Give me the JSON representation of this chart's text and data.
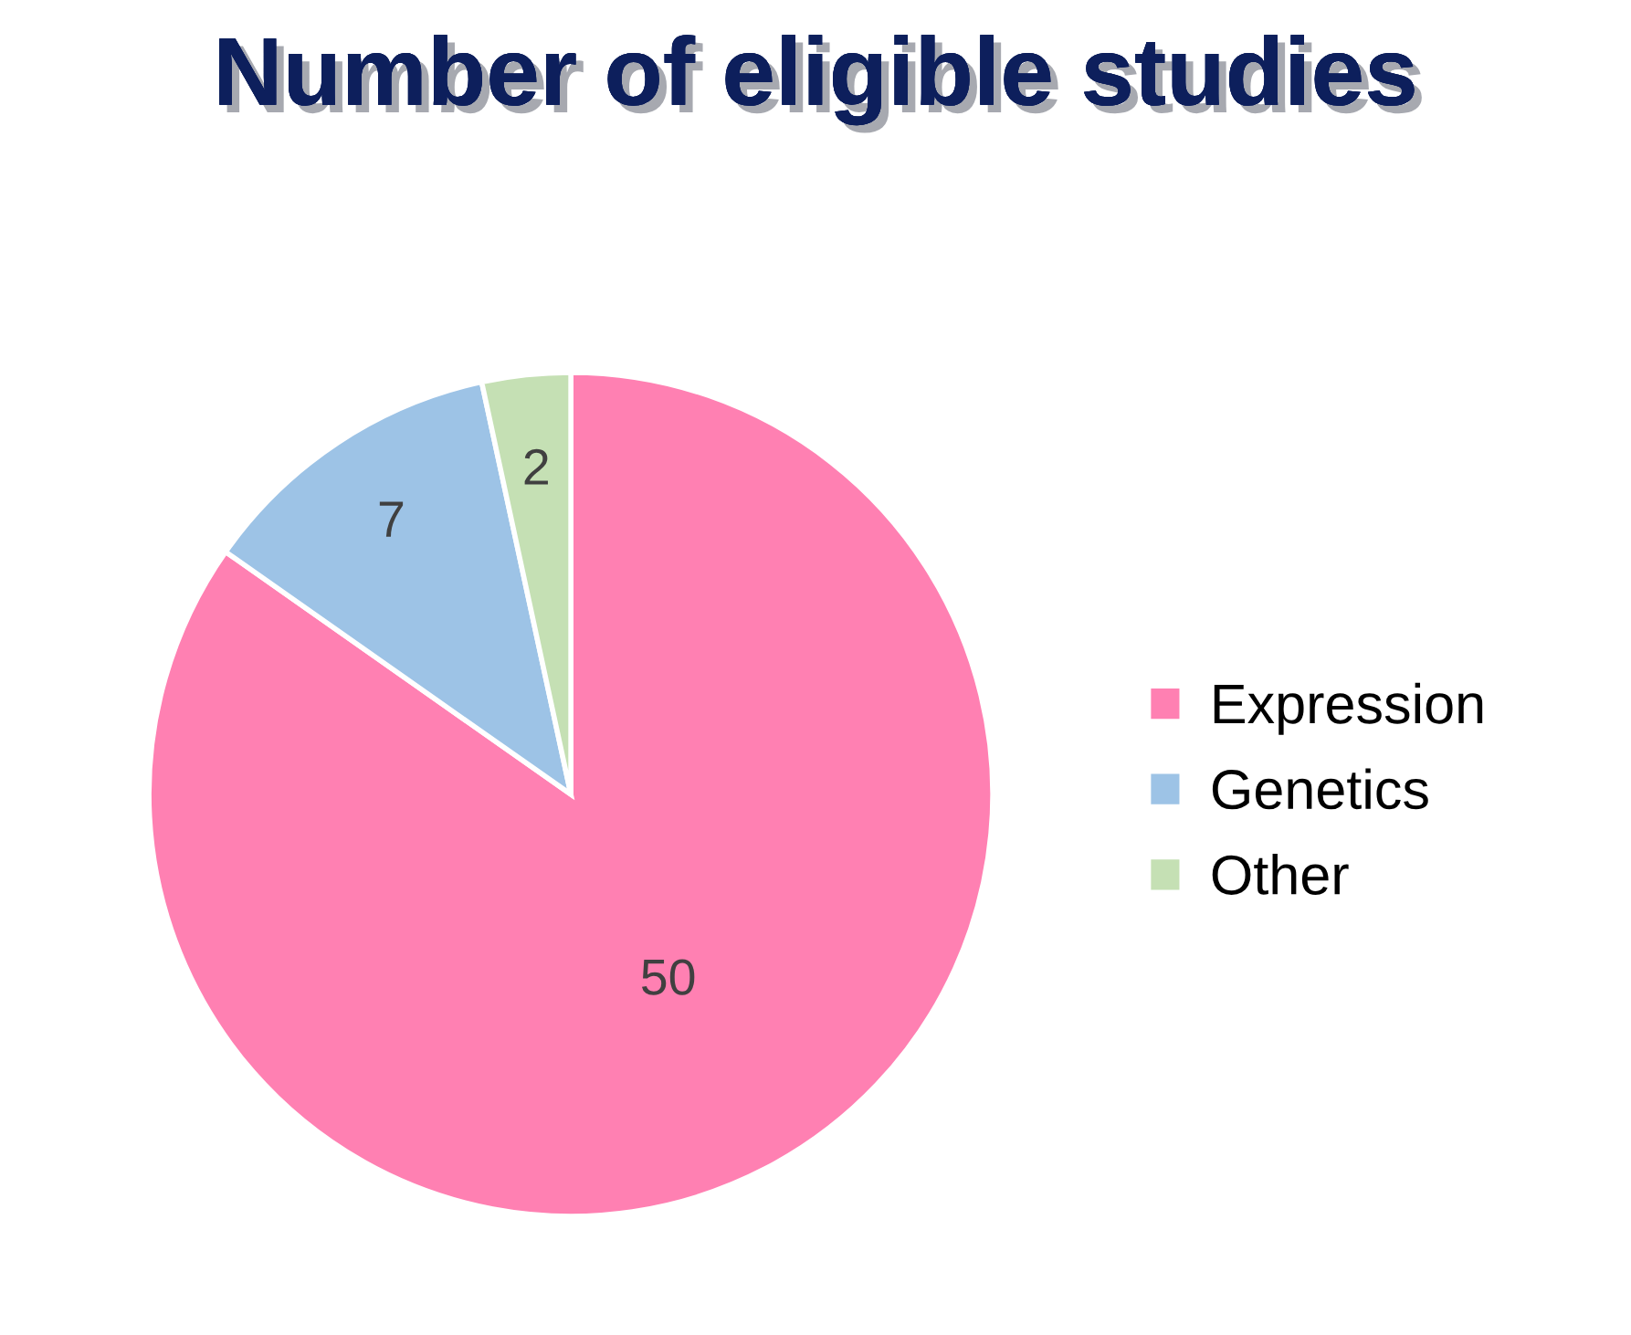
{
  "chart_data": {
    "type": "pie",
    "title": "Number of eligible studies",
    "categories": [
      "Expression",
      "Genetics",
      "Other"
    ],
    "values": [
      50,
      7,
      2
    ],
    "colors": [
      "#ff80b2",
      "#9dc3e6",
      "#c5e0b4"
    ],
    "data_labels": true,
    "legend": "right"
  }
}
